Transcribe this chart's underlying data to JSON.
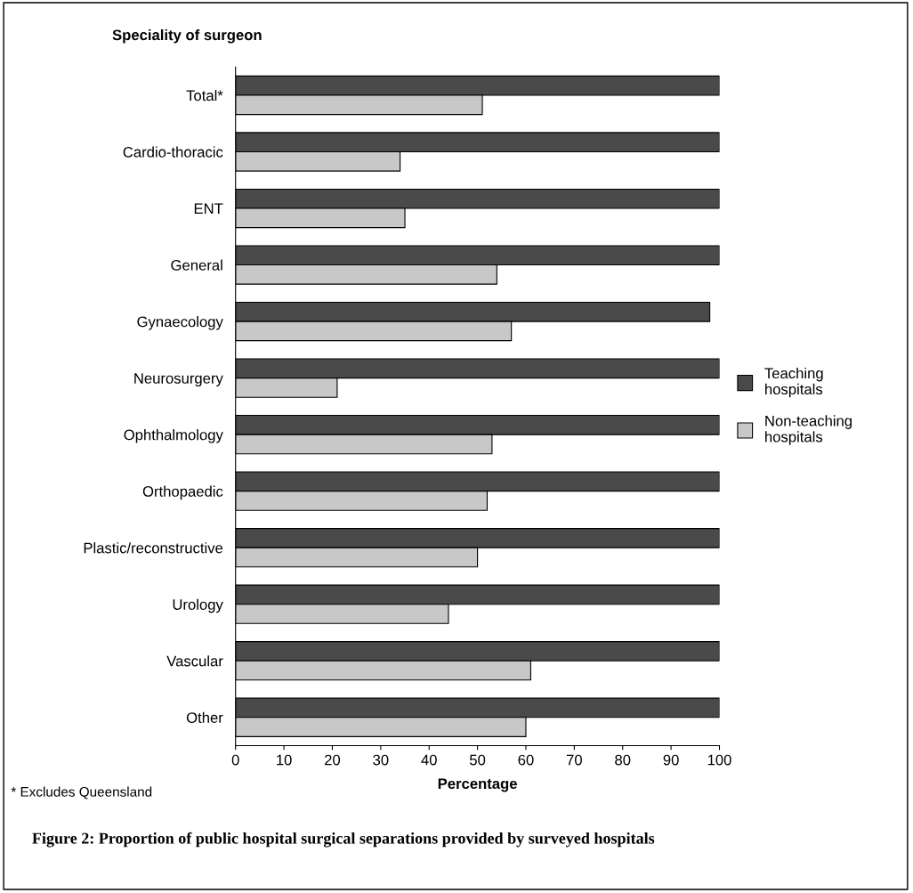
{
  "chart_data": {
    "type": "bar",
    "orientation": "horizontal",
    "title": "Figure 2: Proportion of public hospital surgical separations provided by surveyed hospitals",
    "ylabel": "Speciality of surgeon",
    "xlabel": "Percentage",
    "categories": [
      "Total*",
      "Cardio-thoracic",
      "ENT",
      "General",
      "Gynaecology",
      "Neurosurgery",
      "Ophthalmology",
      "Orthopaedic",
      "Plastic/reconstructive",
      "Urology",
      "Vascular",
      "Other"
    ],
    "series": [
      {
        "name": "Teaching hospitals",
        "color": "#4a4a4a",
        "values": [
          100,
          100,
          100,
          100,
          98,
          100,
          100,
          100,
          100,
          100,
          100,
          100
        ]
      },
      {
        "name": "Non-teaching hospitals",
        "color": "#c8c8c8",
        "values": [
          51,
          34,
          35,
          54,
          57,
          21,
          53,
          52,
          50,
          44,
          61,
          60
        ]
      }
    ],
    "xlim": [
      0,
      100
    ],
    "xticks": [
      0,
      10,
      20,
      30,
      40,
      50,
      60,
      70,
      80,
      90,
      100
    ],
    "grid": false,
    "legend": "right",
    "annotations": [
      "* Excludes Queensland"
    ]
  }
}
